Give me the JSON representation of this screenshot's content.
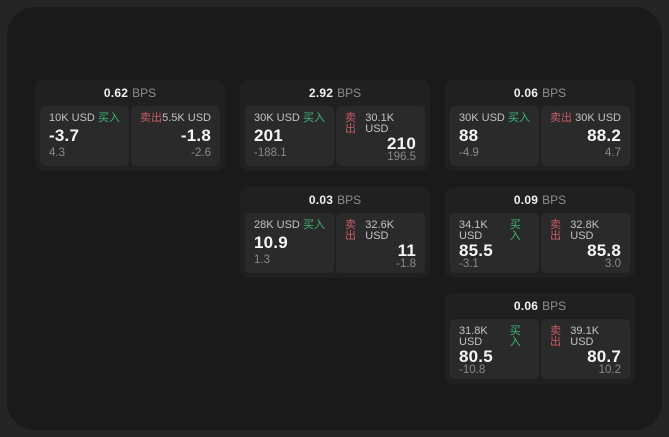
{
  "colors": {
    "buy_green": "#3cb878",
    "sell_red": "#c75c66",
    "surface": "#1a1a1a",
    "card": "#202020",
    "panel": "#2a2a2a"
  },
  "bps_unit": "BPS",
  "cards": [
    {
      "bps": "0.62",
      "buy": {
        "amount": "10K USD",
        "label": "买入",
        "price": "-3.7",
        "delta": "4.3"
      },
      "sell": {
        "label": "卖出",
        "amount": "5.5K USD",
        "price": "-1.8",
        "delta": "-2.6"
      }
    },
    {
      "bps": "2.92",
      "buy": {
        "amount": "30K USD",
        "label": "买入",
        "price": "201",
        "delta": "-188.1"
      },
      "sell": {
        "label": "卖出",
        "amount": "30.1K USD",
        "price": "210",
        "delta": "196.5"
      }
    },
    {
      "bps": "0.06",
      "buy": {
        "amount": "30K USD",
        "label": "买入",
        "price": "88",
        "delta": "-4.9"
      },
      "sell": {
        "label": "卖出",
        "amount": "30K USD",
        "price": "88.2",
        "delta": "4.7"
      }
    },
    {
      "bps": "0.03",
      "buy": {
        "amount": "28K USD",
        "label": "买入",
        "price": "10.9",
        "delta": "1.3"
      },
      "sell": {
        "label": "卖出",
        "amount": "32.6K USD",
        "price": "11",
        "delta": "-1.8"
      }
    },
    {
      "bps": "0.09",
      "buy": {
        "amount": "34.1K USD",
        "label": "买入",
        "price": "85.5",
        "delta": "-3.1"
      },
      "sell": {
        "label": "卖出",
        "amount": "32.8K USD",
        "price": "85.8",
        "delta": "3.0"
      }
    },
    {
      "bps": "0.06",
      "buy": {
        "amount": "31.8K USD",
        "label": "买入",
        "price": "80.5",
        "delta": "-10.8"
      },
      "sell": {
        "label": "卖出",
        "amount": "39.1K USD",
        "price": "80.7",
        "delta": "10.2"
      }
    }
  ]
}
